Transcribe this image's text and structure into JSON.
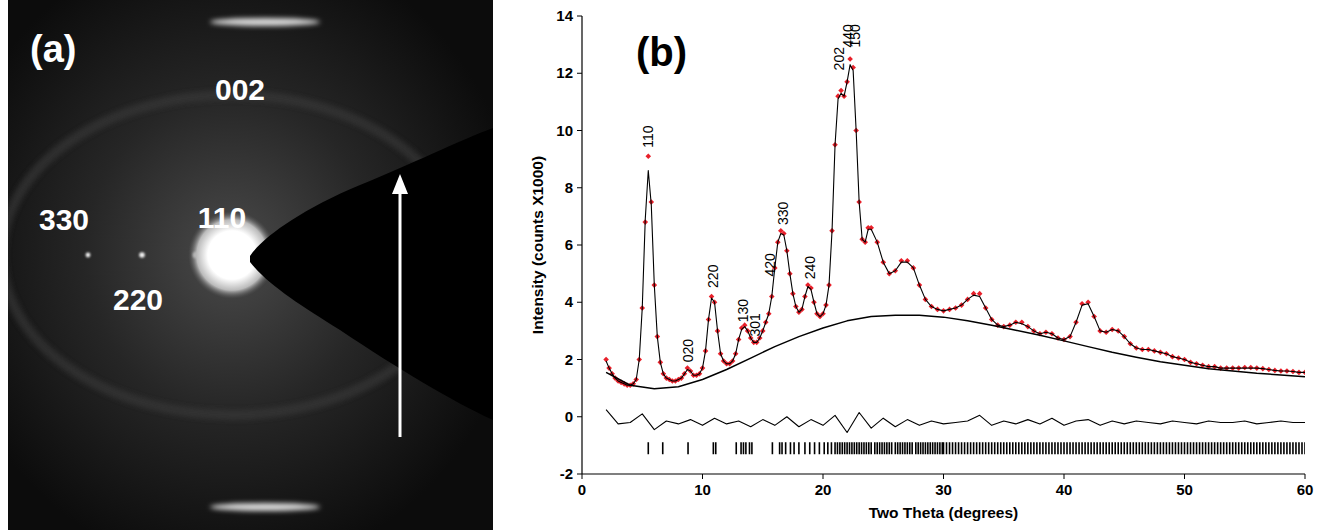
{
  "panel_a": {
    "label": "(a)",
    "streak": "002",
    "row_spots": [
      "110",
      "220",
      "330"
    ]
  },
  "chart_data": {
    "type": "line",
    "title": "(b)",
    "x_label": "Two Theta (degrees)",
    "y_label": "Intensity (counts X1000)",
    "xlim": [
      0,
      60
    ],
    "xticks": [
      0,
      10,
      20,
      30,
      40,
      50,
      60
    ],
    "ylim": [
      -2,
      14
    ],
    "yticks": [
      -2,
      0,
      2,
      4,
      6,
      8,
      10,
      12,
      14
    ],
    "grid": false,
    "x": [
      2,
      2.25,
      2.5,
      2.75,
      3,
      3.25,
      3.5,
      3.75,
      4,
      4.25,
      4.5,
      4.75,
      5,
      5.25,
      5.5,
      5.75,
      6,
      6.25,
      6.5,
      6.75,
      7,
      7.25,
      7.5,
      7.75,
      8,
      8.25,
      8.5,
      8.75,
      9,
      9.25,
      9.5,
      9.75,
      10,
      10.25,
      10.5,
      10.75,
      11,
      11.25,
      11.5,
      11.75,
      12,
      12.25,
      12.5,
      12.75,
      13,
      13.25,
      13.5,
      13.75,
      14,
      14.25,
      14.5,
      14.75,
      15,
      15.25,
      15.5,
      15.75,
      16,
      16.25,
      16.5,
      16.75,
      17,
      17.25,
      17.5,
      17.75,
      18,
      18.25,
      18.5,
      18.75,
      19,
      19.25,
      19.5,
      19.75,
      20,
      20.25,
      20.5,
      20.75,
      21,
      21.25,
      21.5,
      21.75,
      22,
      22.25,
      22.5,
      22.75,
      23,
      23.25,
      23.5,
      23.75,
      24,
      24.5,
      25,
      25.5,
      26,
      26.5,
      27,
      27.5,
      28,
      28.5,
      29,
      29.5,
      30,
      30.5,
      31,
      31.5,
      32,
      32.5,
      33,
      33.5,
      34,
      34.5,
      35,
      35.5,
      36,
      36.5,
      37,
      37.5,
      38,
      38.5,
      39,
      39.5,
      40,
      40.5,
      41,
      41.5,
      42,
      42.5,
      43,
      43.5,
      44,
      44.5,
      45,
      45.5,
      46,
      46.5,
      47,
      47.5,
      48,
      48.5,
      49,
      49.5,
      50,
      50.5,
      51,
      51.5,
      52,
      52.5,
      53,
      53.5,
      54,
      54.5,
      55,
      55.5,
      56,
      56.5,
      57,
      57.5,
      58,
      58.5,
      59,
      59.5,
      60
    ],
    "series": [
      {
        "type": "scatter",
        "color": "#e8202a",
        "marker": "diamond",
        "values": [
          2.0,
          1.7,
          1.5,
          1.35,
          1.25,
          1.2,
          1.15,
          1.1,
          1.1,
          1.15,
          1.3,
          2.0,
          3.8,
          6.8,
          9.1,
          7.5,
          4.6,
          2.8,
          1.9,
          1.5,
          1.35,
          1.3,
          1.25,
          1.25,
          1.3,
          1.35,
          1.5,
          1.7,
          1.6,
          1.45,
          1.45,
          1.5,
          1.7,
          2.3,
          3.4,
          4.2,
          4.0,
          3.0,
          2.2,
          1.95,
          1.85,
          1.85,
          1.95,
          2.2,
          2.7,
          3.1,
          3.2,
          3.0,
          2.75,
          2.6,
          2.6,
          2.75,
          3.0,
          3.3,
          3.6,
          4.2,
          5.2,
          6.1,
          6.5,
          6.4,
          5.8,
          5.0,
          4.3,
          3.85,
          3.65,
          3.75,
          4.2,
          4.6,
          4.5,
          4.0,
          3.6,
          3.5,
          3.6,
          3.9,
          4.6,
          6.5,
          9.5,
          11.2,
          11.4,
          11.2,
          11.7,
          12.5,
          12.2,
          10.0,
          7.5,
          6.2,
          6.1,
          6.6,
          6.6,
          6.1,
          5.4,
          5.0,
          5.1,
          5.45,
          5.45,
          5.2,
          4.6,
          4.1,
          3.85,
          3.75,
          3.7,
          3.75,
          3.8,
          3.9,
          4.1,
          4.3,
          4.3,
          3.8,
          3.4,
          3.2,
          3.15,
          3.2,
          3.3,
          3.3,
          3.15,
          3.0,
          2.9,
          2.95,
          2.9,
          2.75,
          2.7,
          2.8,
          3.3,
          3.95,
          4.0,
          3.5,
          3.0,
          2.95,
          3.05,
          3.0,
          2.8,
          2.55,
          2.4,
          2.35,
          2.35,
          2.3,
          2.25,
          2.2,
          2.1,
          2.05,
          2.0,
          1.9,
          1.85,
          1.8,
          1.75,
          1.75,
          1.7,
          1.7,
          1.7,
          1.7,
          1.72,
          1.72,
          1.7,
          1.68,
          1.65,
          1.62,
          1.6,
          1.6,
          1.58,
          1.55,
          1.55
        ]
      },
      {
        "type": "line",
        "color": "#000000",
        "values": [
          1.95,
          1.7,
          1.5,
          1.35,
          1.25,
          1.2,
          1.15,
          1.1,
          1.1,
          1.15,
          1.3,
          2.0,
          3.8,
          6.9,
          8.6,
          7.4,
          4.6,
          2.8,
          1.9,
          1.5,
          1.35,
          1.3,
          1.25,
          1.25,
          1.3,
          1.35,
          1.5,
          1.65,
          1.6,
          1.45,
          1.45,
          1.5,
          1.7,
          2.3,
          3.4,
          4.15,
          4.0,
          3.0,
          2.2,
          1.95,
          1.85,
          1.85,
          1.95,
          2.2,
          2.7,
          3.05,
          3.15,
          3.0,
          2.75,
          2.6,
          2.6,
          2.75,
          3.0,
          3.3,
          3.6,
          4.2,
          5.2,
          6.1,
          6.4,
          6.35,
          5.8,
          5.0,
          4.3,
          3.85,
          3.65,
          3.75,
          4.2,
          4.55,
          4.45,
          4.0,
          3.6,
          3.5,
          3.6,
          3.9,
          4.6,
          6.5,
          9.5,
          11.1,
          11.3,
          11.2,
          11.7,
          12.3,
          12.1,
          10.0,
          7.5,
          6.2,
          6.1,
          6.55,
          6.55,
          6.1,
          5.4,
          5.0,
          5.1,
          5.4,
          5.4,
          5.2,
          4.6,
          4.1,
          3.85,
          3.75,
          3.7,
          3.75,
          3.8,
          3.9,
          4.1,
          4.25,
          4.2,
          3.8,
          3.4,
          3.2,
          3.15,
          3.2,
          3.3,
          3.25,
          3.15,
          3.0,
          2.9,
          2.95,
          2.9,
          2.75,
          2.7,
          2.8,
          3.3,
          3.9,
          3.95,
          3.5,
          3.0,
          2.95,
          3.05,
          3.0,
          2.8,
          2.55,
          2.4,
          2.35,
          2.35,
          2.3,
          2.25,
          2.2,
          2.1,
          2.05,
          2.0,
          1.9,
          1.85,
          1.8,
          1.75,
          1.75,
          1.7,
          1.7,
          1.7,
          1.7,
          1.7,
          1.7,
          1.7,
          1.68,
          1.65,
          1.62,
          1.6,
          1.6,
          1.58,
          1.55,
          1.55
        ]
      },
      {
        "type": "line",
        "color": "#000000",
        "x": [
          2,
          4,
          6,
          8,
          10,
          12,
          14,
          16,
          18,
          20,
          22,
          24,
          26,
          28,
          30,
          32,
          34,
          36,
          38,
          40,
          42,
          44,
          46,
          48,
          50,
          52,
          54,
          56,
          58,
          60
        ],
        "values": [
          1.55,
          1.1,
          0.98,
          1.05,
          1.3,
          1.65,
          2.05,
          2.45,
          2.8,
          3.1,
          3.35,
          3.5,
          3.55,
          3.55,
          3.48,
          3.35,
          3.2,
          3.02,
          2.85,
          2.65,
          2.45,
          2.25,
          2.08,
          1.92,
          1.8,
          1.68,
          1.6,
          1.52,
          1.46,
          1.4
        ]
      },
      {
        "type": "line",
        "color": "#000000",
        "x": [
          2,
          3,
          4,
          5,
          6,
          7,
          8,
          9,
          10,
          11,
          12,
          13,
          14,
          15,
          16,
          17,
          18,
          19,
          20,
          21,
          22,
          23,
          24,
          25,
          26,
          27,
          28,
          29,
          30,
          31,
          32,
          33,
          34,
          35,
          36,
          37,
          38,
          39,
          40,
          41,
          42,
          43,
          44,
          45,
          46,
          47,
          48,
          49,
          50,
          51,
          52,
          53,
          54,
          55,
          56,
          57,
          58,
          59,
          60
        ],
        "values": [
          0.25,
          -0.25,
          -0.2,
          0.1,
          -0.45,
          -0.15,
          -0.25,
          -0.1,
          -0.3,
          -0.05,
          -0.25,
          -0.15,
          -0.35,
          -0.1,
          -0.3,
          0.0,
          -0.35,
          -0.1,
          -0.3,
          0.05,
          -0.55,
          0.15,
          -0.4,
          -0.05,
          -0.35,
          -0.1,
          -0.3,
          -0.15,
          -0.25,
          -0.2,
          -0.15,
          0.05,
          -0.3,
          -0.15,
          -0.25,
          -0.1,
          -0.25,
          -0.05,
          -0.3,
          -0.15,
          -0.1,
          -0.3,
          -0.15,
          -0.25,
          -0.15,
          -0.2,
          -0.25,
          -0.15,
          -0.2,
          -0.25,
          -0.15,
          -0.2,
          -0.2,
          -0.15,
          -0.25,
          -0.2,
          -0.15,
          -0.2,
          -0.2
        ]
      }
    ],
    "reflections": {
      "y": -1.1,
      "x": [
        5.5,
        6.7,
        8.8,
        10.9,
        11.1,
        12.8,
        13.2,
        13.4,
        13.6,
        13.9,
        14.1,
        15.8,
        16.4,
        16.6,
        16.9,
        17.3,
        17.6,
        18.0,
        18.5,
        18.9,
        19.3,
        19.7,
        20.1,
        20.4,
        20.7,
        21.0,
        21.2,
        21.4,
        21.6,
        21.8,
        22.0,
        22.2,
        22.4,
        22.6,
        22.8,
        23.0,
        23.2,
        23.4,
        23.6,
        23.8,
        24.0,
        24.3,
        24.5,
        24.7,
        24.9,
        25.1,
        25.3,
        25.5,
        25.7,
        26.0,
        26.2,
        26.4,
        26.6,
        26.8,
        27.0,
        27.2,
        27.4,
        27.7,
        27.9,
        28.1,
        28.3,
        28.5,
        28.7,
        28.9,
        29.1,
        29.3,
        29.5,
        29.7,
        29.9,
        30,
        30.25,
        30.5,
        30.75,
        31,
        31.25,
        31.5,
        31.75,
        32,
        32.25,
        32.5,
        32.75,
        33,
        33.25,
        33.5,
        33.75,
        34,
        34.25,
        34.5,
        34.75,
        35,
        35.25,
        35.5,
        35.75,
        36,
        36.25,
        36.5,
        36.75,
        37,
        37.25,
        37.5,
        37.75,
        38,
        38.25,
        38.5,
        38.75,
        39,
        39.25,
        39.5,
        39.75,
        40,
        40.25,
        40.5,
        40.75,
        41,
        41.25,
        41.5,
        41.75,
        42,
        42.25,
        42.5,
        42.75,
        43,
        43.25,
        43.5,
        43.75,
        44,
        44.25,
        44.5,
        44.75,
        45,
        45.25,
        45.5,
        45.75,
        46,
        46.25,
        46.5,
        46.75,
        47,
        47.25,
        47.5,
        47.75,
        48,
        48.25,
        48.5,
        48.75,
        49,
        49.25,
        49.5,
        49.75,
        50,
        50.25,
        50.5,
        50.75,
        51,
        51.25,
        51.5,
        51.75,
        52,
        52.25,
        52.5,
        52.75,
        53,
        53.25,
        53.5,
        53.75,
        54,
        54.25,
        54.5,
        54.75,
        55,
        55.25,
        55.5,
        55.75,
        56,
        56.25,
        56.5,
        56.75,
        57,
        57.25,
        57.5,
        57.75,
        58,
        58.25,
        58.5,
        58.75,
        59,
        59.25,
        59.5,
        59.75,
        60
      ]
    },
    "annotations": [
      {
        "text": "110",
        "x": 5.5,
        "y": 9.4
      },
      {
        "text": "020",
        "x": 8.8,
        "y": 1.9
      },
      {
        "text": "220",
        "x": 10.9,
        "y": 4.5
      },
      {
        "text": "130",
        "x": 13.4,
        "y": 3.3
      },
      {
        "text": "301",
        "x": 14.4,
        "y": 2.8
      },
      {
        "text": "420",
        "x": 15.6,
        "y": 4.9
      },
      {
        "text": "330",
        "x": 16.7,
        "y": 6.7
      },
      {
        "text": "240",
        "x": 18.9,
        "y": 4.8
      },
      {
        "text": "202",
        "x": 21.3,
        "y": 12.1
      },
      {
        "text": "440",
        "x": 22.1,
        "y": 12.9
      },
      {
        "text": "150",
        "x": 22.7,
        "y": 12.9
      }
    ]
  }
}
